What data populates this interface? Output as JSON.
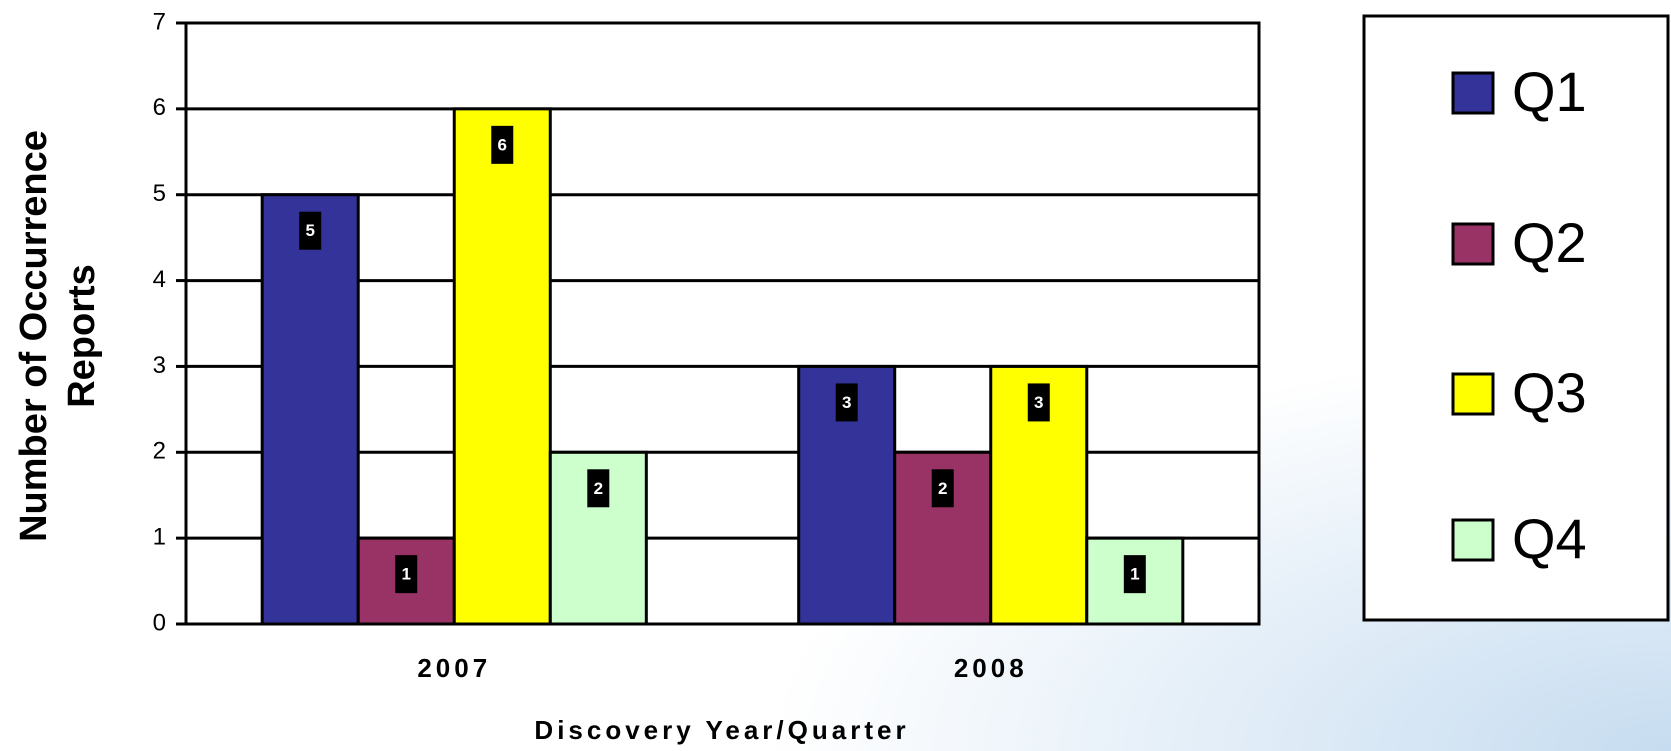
{
  "chart_data": {
    "type": "bar",
    "categories": [
      "2007",
      "2008"
    ],
    "series": [
      {
        "name": "Q1",
        "color": "#333399",
        "values": [
          5,
          3
        ]
      },
      {
        "name": "Q2",
        "color": "#993366",
        "values": [
          1,
          2
        ]
      },
      {
        "name": "Q3",
        "color": "#ffff00",
        "values": [
          6,
          3
        ]
      },
      {
        "name": "Q4",
        "color": "#ccffcc",
        "values": [
          2,
          1
        ]
      }
    ],
    "xlabel": "Discovery Year/Quarter",
    "ylabel": [
      "Number of Occurrence",
      "Reports"
    ],
    "ylim": [
      0,
      7
    ],
    "yticks": [
      0,
      1,
      2,
      3,
      4,
      5,
      6,
      7
    ],
    "grid": true,
    "legend": "right"
  }
}
